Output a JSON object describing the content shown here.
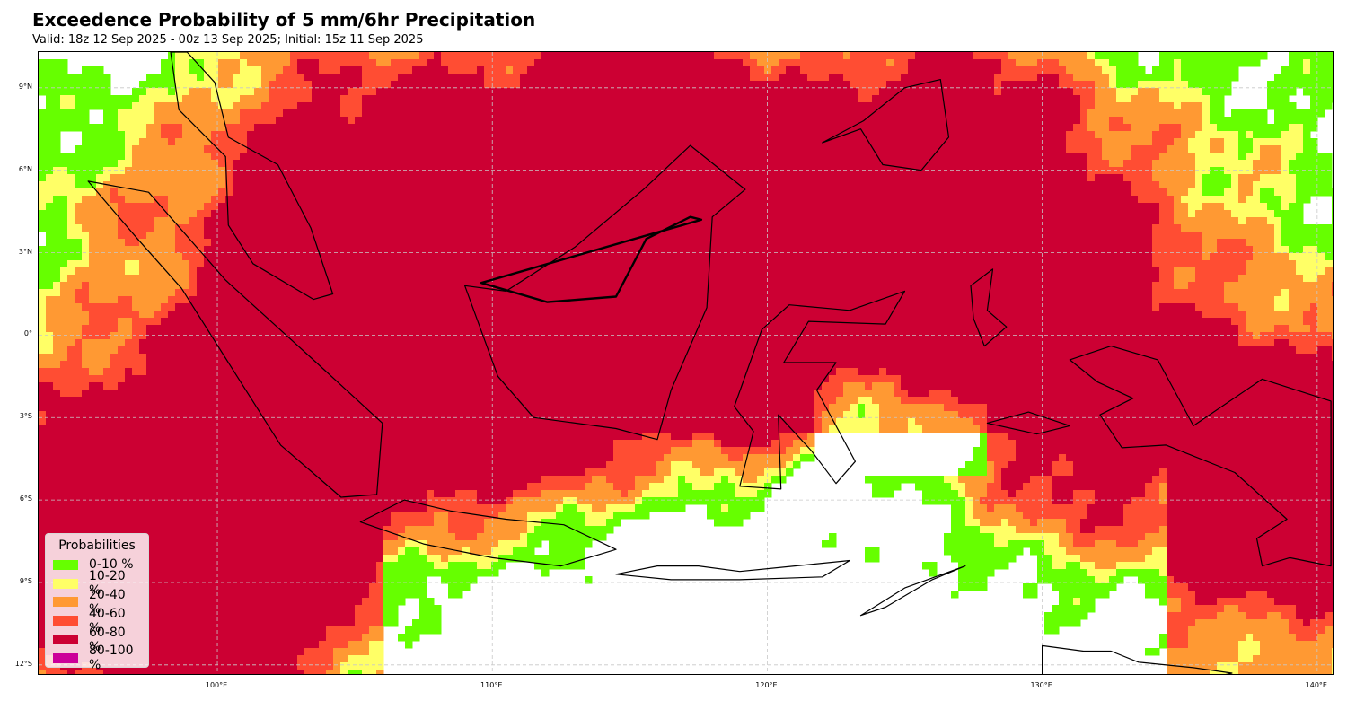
{
  "title": "Exceedence Probability of 5 mm/6hr Precipitation",
  "subtitle": "Valid: 18z 12 Sep 2025 - 00z 13 Sep 2025; Initial: 15z 11 Sep 2025",
  "map": {
    "projection": "PlateCarree",
    "lon_range": [
      93.5,
      140.5
    ],
    "lat_range": [
      -12.4,
      10.3
    ],
    "gridlines": true,
    "coastlines": true,
    "lat_ticks": [
      {
        "value": 9,
        "label": "9°N"
      },
      {
        "value": 6,
        "label": "6°N"
      },
      {
        "value": 3,
        "label": "3°N"
      },
      {
        "value": 0,
        "label": "0°"
      },
      {
        "value": -3,
        "label": "3°S"
      },
      {
        "value": -6,
        "label": "6°S"
      },
      {
        "value": -9,
        "label": "9°S"
      },
      {
        "value": -12,
        "label": "12°S"
      }
    ],
    "lon_ticks": [
      {
        "value": 100,
        "label": "100°E"
      },
      {
        "value": 110,
        "label": "110°E"
      },
      {
        "value": 120,
        "label": "120°E"
      },
      {
        "value": 130,
        "label": "130°E"
      },
      {
        "value": 140,
        "label": "140°E"
      }
    ]
  },
  "legend": {
    "title": "Probabilities",
    "placement": "lower-left",
    "items": [
      {
        "label": "0-10 %",
        "color": "#66ff00"
      },
      {
        "label": "10-20 %",
        "color": "#ffff66"
      },
      {
        "label": "20-40 %",
        "color": "#ff9933"
      },
      {
        "label": "40-60 %",
        "color": "#ff4d33"
      },
      {
        "label": "60-80 %",
        "color": "#cc0033"
      },
      {
        "label": "80-100 %",
        "color": "#cc0099"
      }
    ]
  }
}
